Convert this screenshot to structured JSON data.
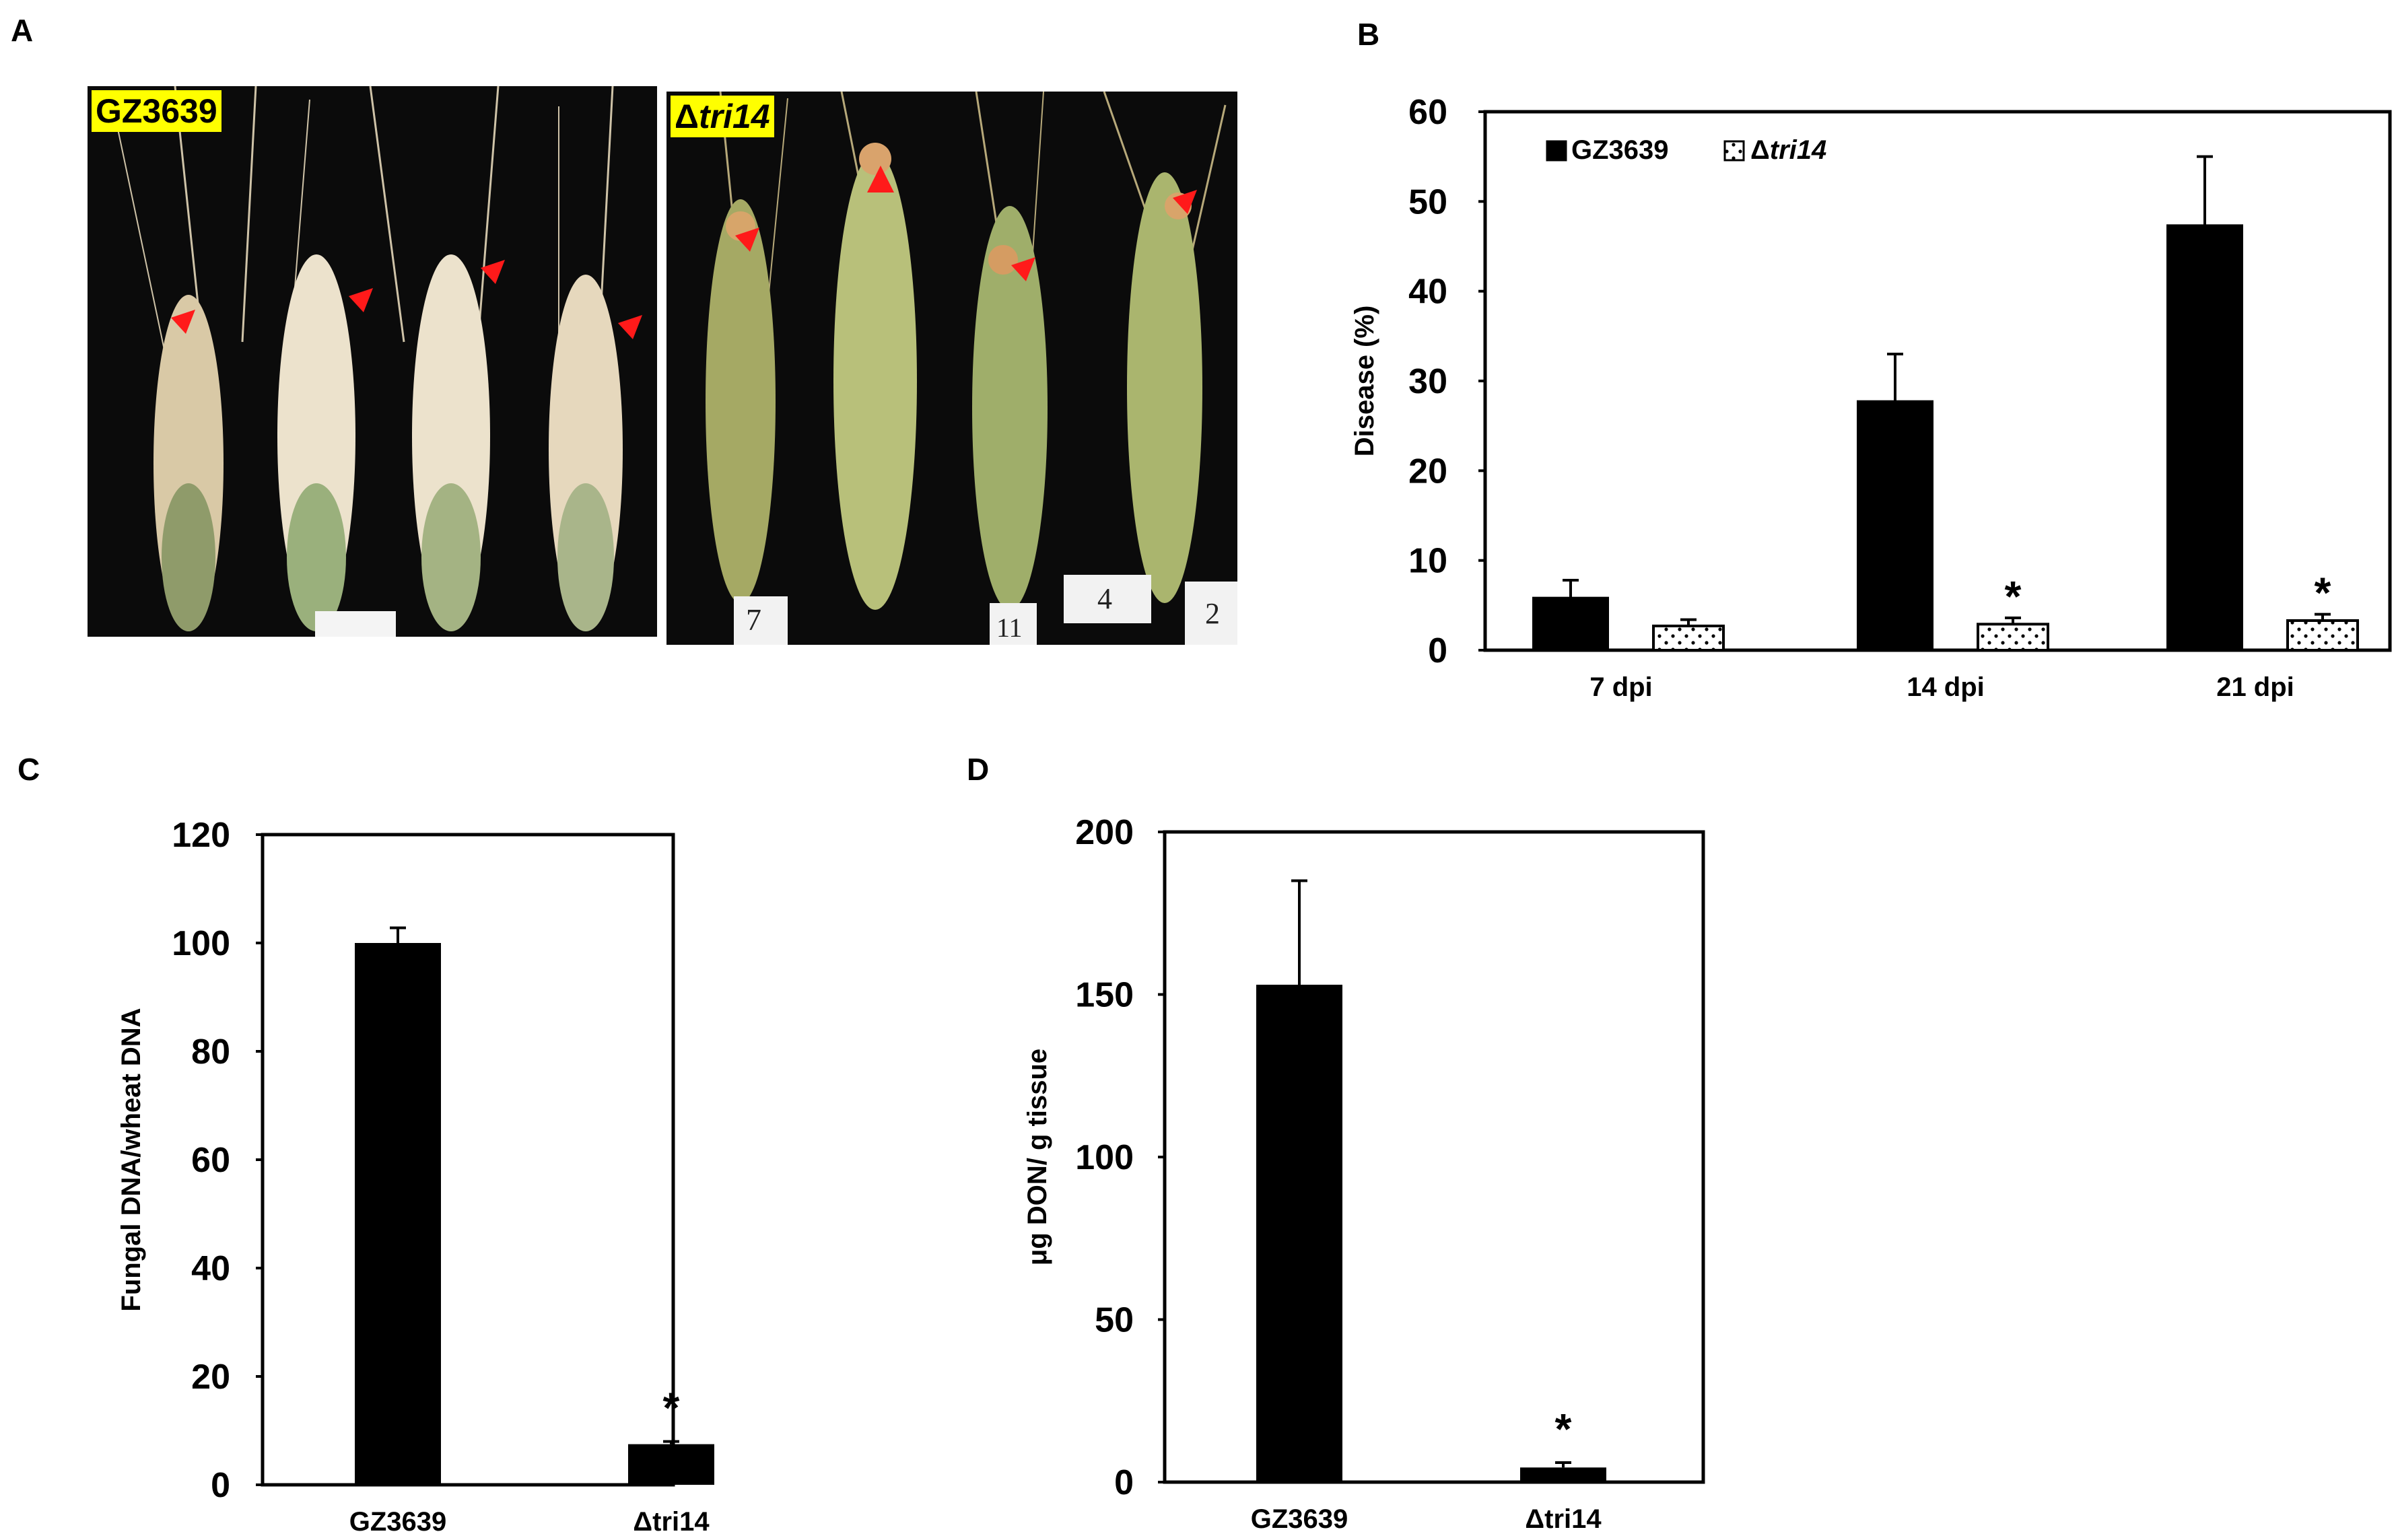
{
  "panels": {
    "a": "A",
    "b": "B",
    "c": "C",
    "d": "D"
  },
  "photos": {
    "left_label": "GZ3639",
    "right_label_prefix": "Δ",
    "right_label_gene": "tri14",
    "right_tags": [
      "7",
      "11",
      "4",
      "2"
    ]
  },
  "chart_data": [
    {
      "id": "B",
      "type": "bar",
      "categories": [
        "7 dpi",
        "14 dpi",
        "21 dpi"
      ],
      "series": [
        {
          "name": "GZ3639",
          "values": [
            5.8,
            27.7,
            47.3
          ],
          "errors": [
            2.0,
            5.3,
            7.7
          ],
          "fill": "#000000"
        },
        {
          "name": "Δtri14",
          "name_prefix": "Δ",
          "name_gene": "tri14",
          "values": [
            2.7,
            2.9,
            3.3
          ],
          "errors": [
            0.7,
            0.7,
            0.7
          ],
          "fill": "dotted"
        }
      ],
      "significance": [
        "",
        "*",
        "*"
      ],
      "ylabel": "Disease (%)",
      "xlabel": "",
      "ylim": [
        0,
        60
      ],
      "yticks": [
        "0",
        "10",
        "20",
        "30",
        "40",
        "50",
        "60"
      ],
      "legend": "top-left"
    },
    {
      "id": "C",
      "type": "bar",
      "categories": [
        "GZ3639",
        "Δtri14"
      ],
      "values": [
        100,
        7.5
      ],
      "errors": [
        2.8,
        0.5
      ],
      "significance": [
        "",
        "*"
      ],
      "ylabel": "Fungal DNA/wheat DNA",
      "xlabel": "",
      "ylim": [
        0,
        120
      ],
      "yticks": [
        "0",
        "20",
        "40",
        "60",
        "80",
        "100",
        "120"
      ]
    },
    {
      "id": "D",
      "type": "bar",
      "categories": [
        "GZ3639",
        "Δtri14"
      ],
      "values": [
        153,
        4.5
      ],
      "errors": [
        32,
        1.5
      ],
      "significance": [
        "",
        "*"
      ],
      "ylabel": "μg DON/ g tissue",
      "xlabel": "",
      "ylim": [
        0,
        200
      ],
      "yticks": [
        "0",
        "50",
        "100",
        "150",
        "200"
      ]
    }
  ],
  "colors": {
    "bar": "#000000",
    "photo_label_bg": "#ffff00",
    "arrow": "#ff1a1a",
    "spike_infected": "#e8dcc4",
    "spike_healthy": "#9aa861"
  }
}
